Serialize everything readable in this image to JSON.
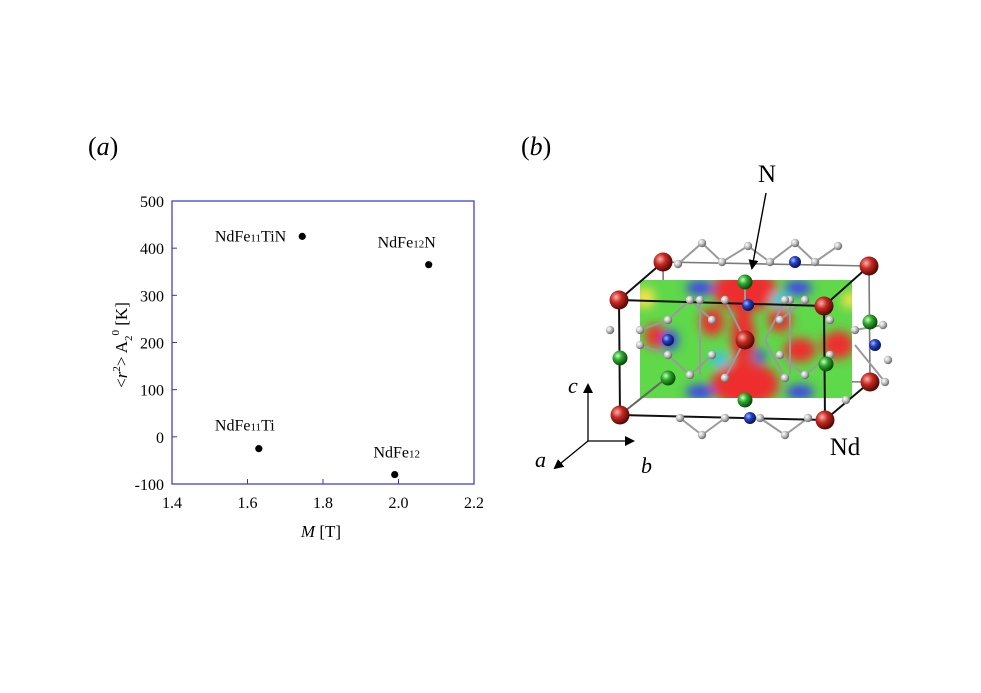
{
  "panel_a": {
    "open": "(",
    "letter": "a",
    "close": ")"
  },
  "panel_b": {
    "open": "(",
    "letter": "b",
    "close": ")"
  },
  "chart_data": {
    "type": "scatter",
    "xlabel_italic": "M",
    "xlabel_rest": " [T]",
    "ylabel": {
      "open": "<",
      "r": "r",
      "r_sup": "2",
      "mid": "> A",
      "a_sub": "2",
      "a_sup": "0",
      "unit": " [K]"
    },
    "xlim": [
      1.4,
      2.2
    ],
    "ylim": [
      -100,
      500
    ],
    "xticks": [
      "1.4",
      "1.6",
      "1.8",
      "2.0",
      "2.2"
    ],
    "yticks": [
      "500",
      "400",
      "300",
      "200",
      "100",
      "0",
      "-100"
    ],
    "frame_color": "#3333cc",
    "points": [
      {
        "x": 1.745,
        "y": 425,
        "parts": [
          [
            "NdFe",
            false
          ],
          [
            "11",
            true
          ],
          [
            "TiN",
            false
          ]
        ],
        "anchor": "end",
        "dx": -16,
        "dy": 5
      },
      {
        "x": 2.08,
        "y": 365,
        "parts": [
          [
            "NdFe",
            false
          ],
          [
            "12",
            true
          ],
          [
            "N",
            false
          ]
        ],
        "anchor": "middle",
        "dx": -22,
        "dy": -17
      },
      {
        "x": 1.63,
        "y": -25,
        "parts": [
          [
            "NdFe",
            false
          ],
          [
            "11",
            true
          ],
          [
            "Ti",
            false
          ]
        ],
        "anchor": "middle",
        "dx": -14,
        "dy": -18
      },
      {
        "x": 1.99,
        "y": -80,
        "parts": [
          [
            "NdFe",
            false
          ],
          [
            "12",
            true
          ]
        ],
        "anchor": "middle",
        "dx": 2,
        "dy": -17
      }
    ]
  },
  "crystal": {
    "label_N": "N",
    "label_Nd": "Nd",
    "axis_a": "a",
    "axis_b": "b",
    "axis_c": "c",
    "colors": {
      "nd": "#b3201f",
      "n": "#1f3fbf",
      "ti": "#2aa02a",
      "fe": "#c8c8c8",
      "map_green": "#5fd84a",
      "map_red": "#ee2e2e",
      "map_blue": "#3c3cf0"
    }
  }
}
